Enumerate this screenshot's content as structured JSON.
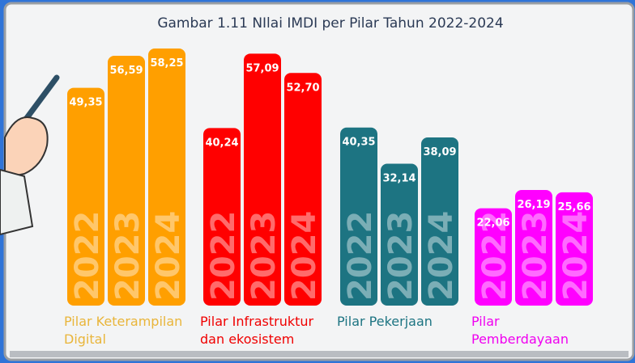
{
  "chart_data": {
    "type": "bar",
    "title": "Gambar 1.11 NIlai IMDI per Pilar Tahun 2022-2024",
    "categories": [
      "Pilar Keterampilan Digital",
      "Pilar Infrastruktur dan ekosistem",
      "Pilar Pekerjaan",
      "Pilar Pemberdayaan"
    ],
    "category_colors": [
      "#ff9f00",
      "#ff0000",
      "#1d7482",
      "#ff00ff"
    ],
    "category_label_colors": [
      "#e9b53a",
      "#f00000",
      "#1d7482",
      "#f000f0"
    ],
    "series": [
      {
        "name": "2022",
        "values": [
          49.35,
          40.24,
          40.35,
          22.06
        ],
        "value_labels": [
          "49,35",
          "40,24",
          "40,35",
          "22,06"
        ]
      },
      {
        "name": "2023",
        "values": [
          56.59,
          57.09,
          32.14,
          26.19
        ],
        "value_labels": [
          "56,59",
          "57,09",
          "32,14",
          "26,19"
        ]
      },
      {
        "name": "2024",
        "values": [
          58.25,
          52.7,
          38.09,
          25.66
        ],
        "value_labels": [
          "58,25",
          "52,70",
          "38,09",
          "25,66"
        ]
      }
    ]
  }
}
